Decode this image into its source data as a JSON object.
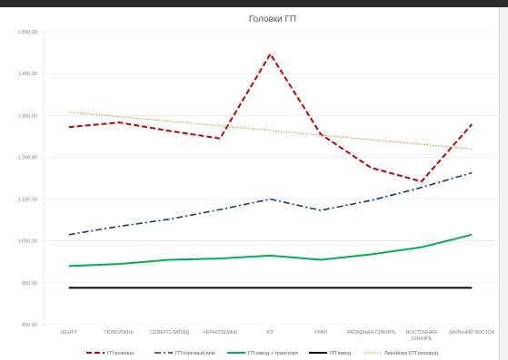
{
  "chart_data": {
    "type": "line",
    "title": "Головки ГП",
    "xlabel": "",
    "ylabel": "",
    "ylim": [
      850,
      1550
    ],
    "yticks": [
      "850,00",
      "950,00",
      "1.050,00",
      "1.150,00",
      "1.250,00",
      "1.350,00",
      "1.450,00",
      "1.550,00"
    ],
    "categories": [
      "ЦЕНТР",
      "ПОВОЛЖЬЕ",
      "СЕВЕРО-ЗАПАД",
      "ЧЕРНОЗЕМЬЕ",
      "ЮГ",
      "УРАЛ",
      "ЗАПАДНАЯ СИБИРЬ",
      "ВОСТОЧНАЯ СИБИРЬ",
      "ДАЛЬНИЙ ВОСТОК"
    ],
    "series": [
      {
        "name": "ГП розница",
        "values": [
          1322,
          1333,
          1313,
          1295,
          1497,
          1305,
          1225,
          1192,
          1329
        ],
        "color": "#c00000",
        "dash": "dash"
      },
      {
        "name": "ГП торговый дом",
        "values": [
          1065,
          1085,
          1102,
          1125,
          1150,
          1123,
          1147,
          1178,
          1213
        ],
        "color": "#203864",
        "dash": "dashdot"
      },
      {
        "name": "ГП завод + транспорт",
        "values": [
          990,
          995,
          1005,
          1008,
          1015,
          1005,
          1018,
          1035,
          1065
        ],
        "color": "#00b050",
        "dash": "solid"
      },
      {
        "name": "ГП завод",
        "values": [
          938,
          938,
          938,
          938,
          938,
          938,
          938,
          938,
          938
        ],
        "color": "#000000",
        "dash": "solid"
      },
      {
        "name": "Линейная (ГП розница)",
        "values": [
          1358,
          1347,
          1336,
          1325,
          1314,
          1303,
          1292,
          1281,
          1270
        ],
        "color": "#bf9000",
        "dash": "dotted"
      }
    ],
    "grid": true,
    "legend": "bottom"
  }
}
